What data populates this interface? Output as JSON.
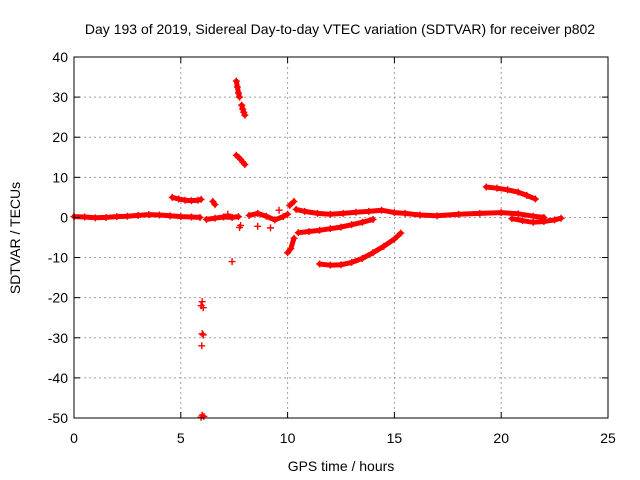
{
  "chart_data": {
    "type": "scatter",
    "title": "Day 193 of 2019, Sidereal Day-to-day VTEC variation (SDTVAR) for receiver p802",
    "xlabel": "GPS time / hours",
    "ylabel": "SDTVAR / TECUs",
    "xlim": [
      0,
      25
    ],
    "ylim": [
      -50,
      40
    ],
    "xticks": [
      0,
      5,
      10,
      15,
      20,
      25
    ],
    "yticks": [
      -50,
      -40,
      -30,
      -20,
      -10,
      0,
      10,
      20,
      30,
      40
    ],
    "grid": true,
    "marker": "+",
    "color": "#ff0000",
    "segments": [
      {
        "x": [
          0.0,
          0.5,
          1.0,
          1.5,
          2.0,
          2.5,
          3.0,
          3.5,
          4.0,
          4.5,
          5.0,
          5.5,
          5.9
        ],
        "y": [
          0.2,
          0.1,
          -0.1,
          0.0,
          0.2,
          0.3,
          0.5,
          0.7,
          0.6,
          0.4,
          0.2,
          0.1,
          0.0
        ]
      },
      {
        "x": [
          4.6,
          4.9,
          5.2,
          5.5,
          5.8,
          5.95
        ],
        "y": [
          5.0,
          4.6,
          4.3,
          4.2,
          4.3,
          4.5
        ]
      },
      {
        "x": [
          6.5,
          6.6
        ],
        "y": [
          4.0,
          3.2
        ]
      },
      {
        "x": [
          6.2,
          6.6,
          7.0,
          7.4,
          7.7
        ],
        "y": [
          -0.5,
          -0.2,
          0.1,
          0.0,
          0.2
        ]
      },
      {
        "x": [
          7.6,
          7.65,
          7.7,
          7.75
        ],
        "y": [
          34.0,
          32.5,
          31.0,
          30.0
        ]
      },
      {
        "x": [
          7.85,
          7.9,
          7.95,
          8.0
        ],
        "y": [
          28.0,
          27.0,
          26.2,
          25.5
        ]
      },
      {
        "x": [
          7.6,
          7.7,
          7.8,
          7.9,
          8.0
        ],
        "y": [
          15.5,
          15.0,
          14.5,
          13.8,
          13.2
        ]
      },
      {
        "x": [
          8.2,
          8.6,
          9.0,
          9.4,
          9.8,
          10.0
        ],
        "y": [
          0.5,
          1.0,
          0.3,
          -0.6,
          0.2,
          0.8
        ]
      },
      {
        "x": [
          10.4,
          10.8,
          11.4,
          12.0,
          12.6,
          13.2,
          13.8,
          14.4,
          15.0,
          15.5,
          16.2,
          17.0,
          18.0,
          19.0,
          20.0,
          20.8,
          21.5,
          22.0
        ],
        "y": [
          2.0,
          1.5,
          1.0,
          0.8,
          1.0,
          1.3,
          1.5,
          1.8,
          1.2,
          1.0,
          0.6,
          0.4,
          0.8,
          1.0,
          1.2,
          0.9,
          0.3,
          0.0
        ]
      },
      {
        "x": [
          10.5,
          11.0,
          11.5,
          12.0,
          12.5,
          13.0,
          13.5,
          14.0
        ],
        "y": [
          -3.8,
          -3.5,
          -3.2,
          -2.8,
          -2.4,
          -1.8,
          -1.2,
          -0.5
        ]
      },
      {
        "x": [
          20.5,
          21.0,
          21.5,
          22.0,
          22.5,
          22.8
        ],
        "y": [
          -0.3,
          -0.8,
          -1.2,
          -1.0,
          -0.6,
          -0.2
        ]
      },
      {
        "x": [
          11.5,
          12.0,
          12.5,
          13.0,
          13.5,
          14.0,
          14.5,
          15.0,
          15.3
        ],
        "y": [
          -11.6,
          -11.9,
          -11.8,
          -11.2,
          -10.2,
          -8.8,
          -7.2,
          -5.4,
          -3.9
        ]
      },
      {
        "x": [
          19.3,
          19.8,
          20.3,
          20.8,
          21.2,
          21.6
        ],
        "y": [
          7.6,
          7.3,
          6.9,
          6.3,
          5.5,
          4.6
        ]
      },
      {
        "x": [
          10.0,
          10.15,
          10.3
        ],
        "y": [
          -8.8,
          -7.8,
          -5.2
        ]
      },
      {
        "x": [
          10.1,
          10.3
        ],
        "y": [
          3.0,
          4.0
        ]
      }
    ],
    "points": [
      {
        "x": 6.0,
        "y": -21.0
      },
      {
        "x": 5.95,
        "y": -22.0
      },
      {
        "x": 6.05,
        "y": -22.5
      },
      {
        "x": 6.0,
        "y": -29.0
      },
      {
        "x": 6.05,
        "y": -29.3
      },
      {
        "x": 5.98,
        "y": -32.0
      },
      {
        "x": 6.0,
        "y": -49.3
      },
      {
        "x": 6.08,
        "y": -49.6
      },
      {
        "x": 5.95,
        "y": -49.8
      },
      {
        "x": 7.4,
        "y": -11.0
      },
      {
        "x": 7.2,
        "y": 0.8
      },
      {
        "x": 7.8,
        "y": -2.0
      },
      {
        "x": 7.75,
        "y": -2.5
      },
      {
        "x": 8.6,
        "y": -2.2
      },
      {
        "x": 9.2,
        "y": -2.6
      },
      {
        "x": 9.6,
        "y": 1.8
      }
    ]
  }
}
